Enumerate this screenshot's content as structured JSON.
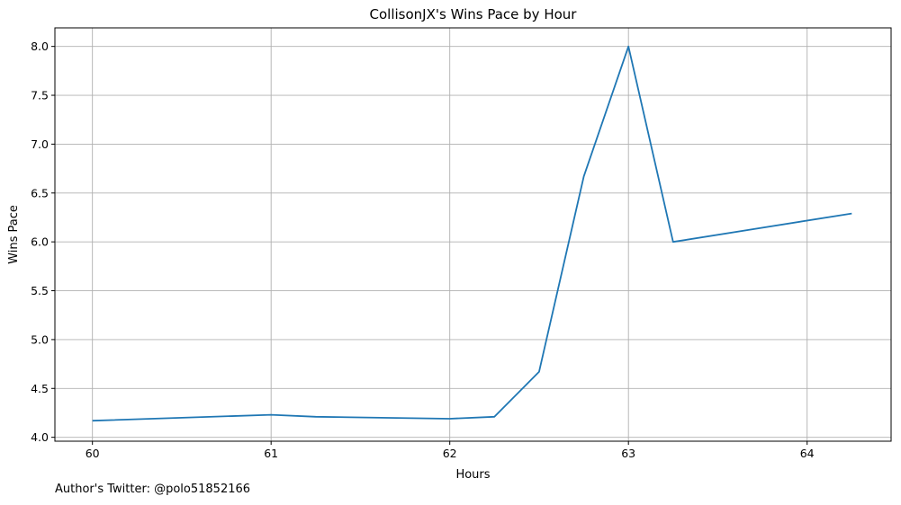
{
  "chart_data": {
    "type": "line",
    "title": "CollisonJX's Wins Pace by Hour",
    "xlabel": "Hours",
    "ylabel": "Wins Pace",
    "x_ticks": [
      60,
      61,
      62,
      63,
      64
    ],
    "y_ticks": [
      4.0,
      4.5,
      5.0,
      5.5,
      6.0,
      6.5,
      7.0,
      7.5,
      8.0
    ],
    "xlim": [
      59.79,
      64.47
    ],
    "ylim": [
      3.96,
      8.19
    ],
    "grid": true,
    "series": [
      {
        "color": "#1f77b4",
        "x": [
          60,
          61,
          61.25,
          62,
          62.25,
          62.5,
          62.75,
          63,
          63.25,
          64.25
        ],
        "y": [
          4.17,
          4.23,
          4.21,
          4.19,
          4.21,
          4.67,
          6.67,
          8.0,
          6.0,
          6.29
        ]
      }
    ]
  },
  "caption": "Author's Twitter: @polo51852166"
}
